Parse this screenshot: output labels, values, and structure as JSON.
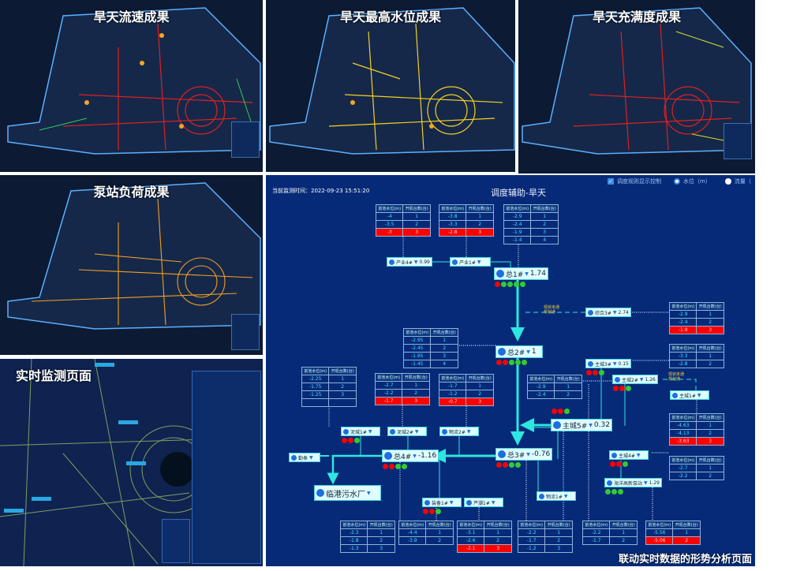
{
  "panels": {
    "flow_velocity": {
      "title": "旱天流速成果"
    },
    "max_water_level": {
      "title": "旱天最高水位成果"
    },
    "fullness": {
      "title": "旱天充满度成果"
    },
    "pump_load": {
      "title": "泵站负荷成果"
    },
    "realtime_monitor": {
      "title": "实时监测页面"
    }
  },
  "diagram": {
    "monitor_time": "当前监测时间：2022-09-23 15:51:20",
    "title": "调度辅助-旱天",
    "controls": {
      "rule_toggle": "调度规则显示控制",
      "rule_checked": true,
      "radio_level": "水位（m）",
      "radio_flow": "流量（",
      "selected": "水位（m）"
    },
    "caption": "联动实时数据的形势分析页面",
    "table_headers": [
      "前池水位(m)",
      "开机台数(台)"
    ],
    "pipe_notes": [
      "现状未通",
      "规划通"
    ],
    "colors": {
      "background": "#062a78",
      "pipe": "#2ee6e0",
      "alarm": "#ff0000",
      "running": "#33cc33"
    },
    "tables": [
      {
        "rows": [
          [
            "-4",
            "1"
          ],
          [
            "-3.5",
            "2"
          ],
          [
            "-3",
            "3"
          ]
        ],
        "red_row": 2
      },
      {
        "rows": [
          [
            "-3.8",
            "1"
          ],
          [
            "-3.3",
            "2"
          ],
          [
            "-2.8",
            "3"
          ]
        ],
        "red_row": 2
      },
      {
        "rows": [
          [
            "-2.9",
            "1"
          ],
          [
            "-2.4",
            "2"
          ],
          [
            "-1.9",
            "3"
          ],
          [
            "-1.4",
            "4"
          ]
        ],
        "red_row": -1
      },
      {
        "rows": [
          [
            "-2.9",
            "1"
          ],
          [
            "-2.4",
            "2"
          ],
          [
            "-1.9",
            "3"
          ]
        ],
        "red_row": 2
      },
      {
        "rows": [
          [
            "-2.95",
            "1"
          ],
          [
            "-2.45",
            "2"
          ],
          [
            "-1.95",
            "3"
          ],
          [
            "-1.45",
            "4"
          ]
        ],
        "red_row": -1
      },
      {
        "rows": [
          [
            "-3.3",
            "1"
          ],
          [
            "-2.8",
            "2"
          ]
        ],
        "red_row": -1
      },
      {
        "rows": [
          [
            "-2.25",
            "1"
          ],
          [
            "-1.75",
            "2"
          ],
          [
            "-1.25",
            "3"
          ],
          [
            "",
            ""
          ]
        ],
        "red_row": -1
      },
      {
        "rows": [
          [
            "-2.7",
            "1"
          ],
          [
            "-2.2",
            "2"
          ],
          [
            "-1.7",
            "3"
          ]
        ],
        "red_row": 2
      },
      {
        "rows": [
          [
            "-1.7",
            "1"
          ],
          [
            "-1.2",
            "2"
          ],
          [
            "-0.7",
            "3"
          ]
        ],
        "red_row": 2
      },
      {
        "rows": [
          [
            "-2.9",
            "1"
          ],
          [
            "-2.4",
            "2"
          ]
        ],
        "red_row": -1
      },
      {
        "rows": [
          [
            "-4.63",
            "1"
          ],
          [
            "-4.13",
            "2"
          ],
          [
            "-3.63",
            "3"
          ]
        ],
        "red_row": 2
      },
      {
        "rows": [
          [
            "-2.7",
            "1"
          ],
          [
            "-2.2",
            "2"
          ]
        ],
        "red_row": -1
      },
      {
        "rows": [
          [
            "-2.3",
            "1"
          ],
          [
            "-1.8",
            "2"
          ],
          [
            "-1.3",
            "3"
          ]
        ],
        "red_row": -1
      },
      {
        "rows": [
          [
            "-4.4",
            "1"
          ],
          [
            "-3.9",
            "2"
          ]
        ],
        "red_row": -1
      },
      {
        "rows": [
          [
            "-3.1",
            "1"
          ],
          [
            "-2.6",
            "2"
          ],
          [
            "-2.1",
            "3"
          ]
        ],
        "red_row": 2
      },
      {
        "rows": [
          [
            "-2.2",
            "1"
          ],
          [
            "-1.7",
            "2"
          ],
          [
            "-1.2",
            "3"
          ]
        ],
        "red_row": -1
      },
      {
        "rows": [
          [
            "-2.2",
            "1"
          ],
          [
            "-1.7",
            "2"
          ]
        ],
        "red_row": -1
      },
      {
        "rows": [
          [
            "-5.56",
            "1"
          ],
          [
            "-5.06",
            "2"
          ]
        ],
        "red_row": 1
      }
    ],
    "stations": [
      {
        "name": "产业4#",
        "value": "0.99"
      },
      {
        "name": "产业1#",
        "value": ""
      },
      {
        "name": "总1#",
        "value": "1.74",
        "status": [
          "r",
          "g",
          "g",
          "g",
          "g"
        ]
      },
      {
        "name": "综合3#",
        "value": "2.74"
      },
      {
        "name": "总2#",
        "value": "1",
        "status": [
          "r",
          "r",
          "g",
          "g",
          "g"
        ]
      },
      {
        "name": "主城3#",
        "value": "0.15",
        "status": [
          "r",
          "r",
          "g"
        ]
      },
      {
        "name": "主城2#",
        "value": "1.26",
        "status": [
          "r",
          "r",
          "g"
        ]
      },
      {
        "name": "主城1#",
        "value": ""
      },
      {
        "name": "主城5#",
        "value": "0.32",
        "status": [
          "r",
          "r",
          "g"
        ]
      },
      {
        "name": "泥城1#",
        "value": "",
        "status": [
          "r",
          "r",
          "g"
        ]
      },
      {
        "name": "泥城2#",
        "value": ""
      },
      {
        "name": "物流2#",
        "value": ""
      },
      {
        "name": "勤奉",
        "value": ""
      },
      {
        "name": "总4#",
        "value": "-1.16",
        "status": [
          "r",
          "r",
          "g",
          "g"
        ]
      },
      {
        "name": "总3#",
        "value": "-0.76",
        "status": [
          "r",
          "r",
          "g",
          "g"
        ]
      },
      {
        "name": "主城4#",
        "value": "",
        "status": [
          "r",
          "r",
          "g"
        ]
      },
      {
        "name": "海洋高新泵站",
        "value": "1.29",
        "status": [
          "g",
          "g",
          "g"
        ]
      },
      {
        "name": "临港污水厂",
        "value": ""
      },
      {
        "name": "物流1#",
        "value": ""
      },
      {
        "name": "装备1#",
        "value": "",
        "status": [
          "r",
          "r",
          "g"
        ]
      },
      {
        "name": "芦潮1#",
        "value": ""
      }
    ]
  }
}
